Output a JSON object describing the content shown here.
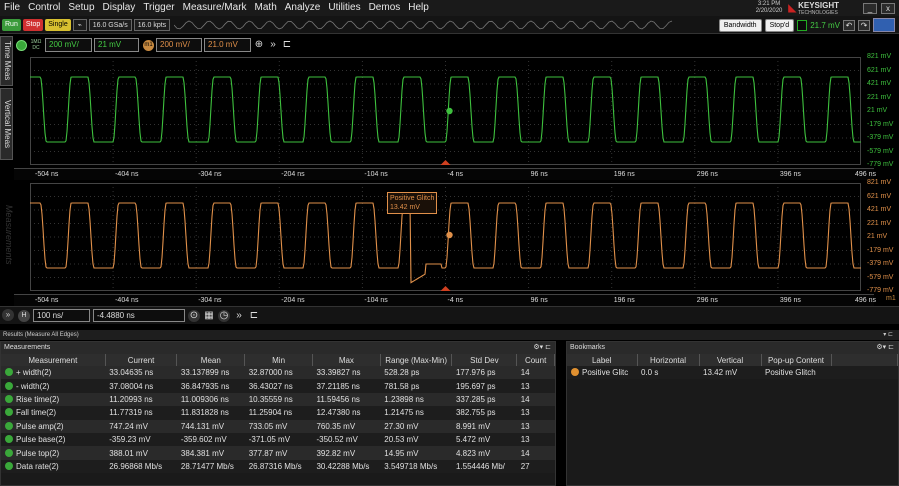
{
  "menu": {
    "items": [
      "File",
      "Control",
      "Setup",
      "Display",
      "Trigger",
      "Measure/Mark",
      "Math",
      "Analyze",
      "Utilities",
      "Demos",
      "Help"
    ]
  },
  "titlebar": {
    "time": "3:21 PM",
    "date": "2/20/2020",
    "brand": "KEYSIGHT",
    "brand_sub": "TECHNOLOGIES",
    "minimize": "_",
    "close": "x"
  },
  "toolbar": {
    "run": "Run",
    "stop": "Stop",
    "single": "Single",
    "sample_rate": "16.0 GSa/s",
    "points": "16.0 kpts",
    "bandwidth": "Bandwidth",
    "status": "Stop'd",
    "trigger_level": "21.7 mV"
  },
  "sidetabs": [
    "Time Meas",
    "Vertical Meas"
  ],
  "channel": {
    "ch_num": "1",
    "ch_small": "1MΩ DC",
    "scale": "200 mV/",
    "offset": "21 mV",
    "math_label": "m1",
    "math_scale": "200 mV/",
    "math_offset": "21.0 mV"
  },
  "scale_labels": [
    "821 mV",
    "621 mV",
    "421 mV",
    "221 mV",
    "21 mV",
    "-179 mV",
    "-379 mV",
    "-579 mV",
    "-779 mV"
  ],
  "time_labels": [
    "-504 ns",
    "-404 ns",
    "-304 ns",
    "-204 ns",
    "-104 ns",
    "-4 ns",
    "96 ns",
    "196 ns",
    "296 ns",
    "396 ns",
    "496 ns"
  ],
  "marker_label": "m1",
  "watermark": "Measurements",
  "glitch": {
    "title": "Positive Glitch",
    "value": "13.42 mV"
  },
  "timebase": {
    "h": "H",
    "scale": "100 ns/",
    "position": "-4.4880 ns"
  },
  "results": {
    "title": "Results",
    "subtitle": "(Measure All Edges)"
  },
  "measurements": {
    "title": "Measurements",
    "columns": [
      "Measurement",
      "Current",
      "Mean",
      "Min",
      "Max",
      "Range (Max-Min)",
      "Std Dev",
      "Count"
    ],
    "rows": [
      [
        "+ width(2)",
        "33.04635 ns",
        "33.137899 ns",
        "32.87000 ns",
        "33.39827 ns",
        "528.28 ps",
        "177.976 ps",
        "14"
      ],
      [
        "- width(2)",
        "37.08004 ns",
        "36.847935 ns",
        "36.43027 ns",
        "37.21185 ns",
        "781.58 ps",
        "195.697 ps",
        "13"
      ],
      [
        "Rise time(2)",
        "11.20993 ns",
        "11.009306 ns",
        "10.35559 ns",
        "11.59456 ns",
        "1.23898 ns",
        "337.285 ps",
        "14"
      ],
      [
        "Fall time(2)",
        "11.77319 ns",
        "11.831828 ns",
        "11.25904 ns",
        "12.47380 ns",
        "1.21475 ns",
        "382.755 ps",
        "13"
      ],
      [
        "Pulse amp(2)",
        "747.24 mV",
        "744.131 mV",
        "733.05 mV",
        "760.35 mV",
        "27.30 mV",
        "8.991 mV",
        "13"
      ],
      [
        "Pulse base(2)",
        "-359.23 mV",
        "-359.602 mV",
        "-371.05 mV",
        "-350.52 mV",
        "20.53 mV",
        "5.472 mV",
        "13"
      ],
      [
        "Pulse top(2)",
        "388.01 mV",
        "384.381 mV",
        "377.87 mV",
        "392.82 mV",
        "14.95 mV",
        "4.823 mV",
        "14"
      ],
      [
        "Data rate(2)",
        "26.96868 Mb/s",
        "28.71477 Mb/s",
        "26.87316 Mb/s",
        "30.42288 Mb/s",
        "3.549718 Mb/s",
        "1.554446 Mb/",
        "27"
      ]
    ]
  },
  "bookmarks": {
    "title": "Bookmarks",
    "columns": [
      "Label",
      "Horizontal",
      "Vertical",
      "Pop-up Content"
    ],
    "rows": [
      [
        "Positive Glitc",
        "0.0 s",
        "13.42 mV",
        "Positive Glitch"
      ]
    ]
  },
  "colors": {
    "ch1": "#3ec03e",
    "math": "#e0904a",
    "grid": "#3a3a3a"
  }
}
